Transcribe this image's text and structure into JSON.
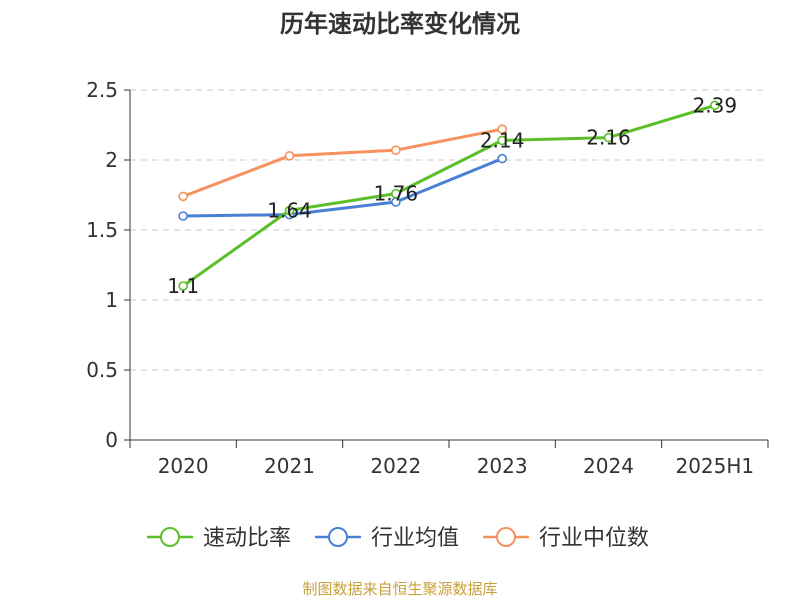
{
  "chart_data": {
    "type": "line",
    "title": "历年速动比率变化情况",
    "categories": [
      "2020",
      "2021",
      "2022",
      "2023",
      "2024",
      "2025H1"
    ],
    "ylim": [
      0,
      2.5
    ],
    "yticks": [
      "0",
      "0.5",
      "1",
      "1.5",
      "2",
      "2.5"
    ],
    "grid": true,
    "legend_position": "bottom",
    "series": [
      {
        "name": "速动比率",
        "color": "#5cbf2a",
        "values": [
          1.1,
          1.64,
          1.76,
          2.14,
          2.16,
          2.39
        ],
        "labels": [
          "1.1",
          "1.64",
          "1.76",
          "2.14",
          "2.16",
          "2.39"
        ]
      },
      {
        "name": "行业均值",
        "color": "#4a7fd6",
        "values": [
          1.6,
          1.61,
          1.7,
          2.01,
          null,
          null
        ]
      },
      {
        "name": "行业中位数",
        "color": "#f5925e",
        "values": [
          1.74,
          2.03,
          2.07,
          2.22,
          null,
          null
        ]
      }
    ]
  },
  "source": "制图数据来自恒生聚源数据库"
}
